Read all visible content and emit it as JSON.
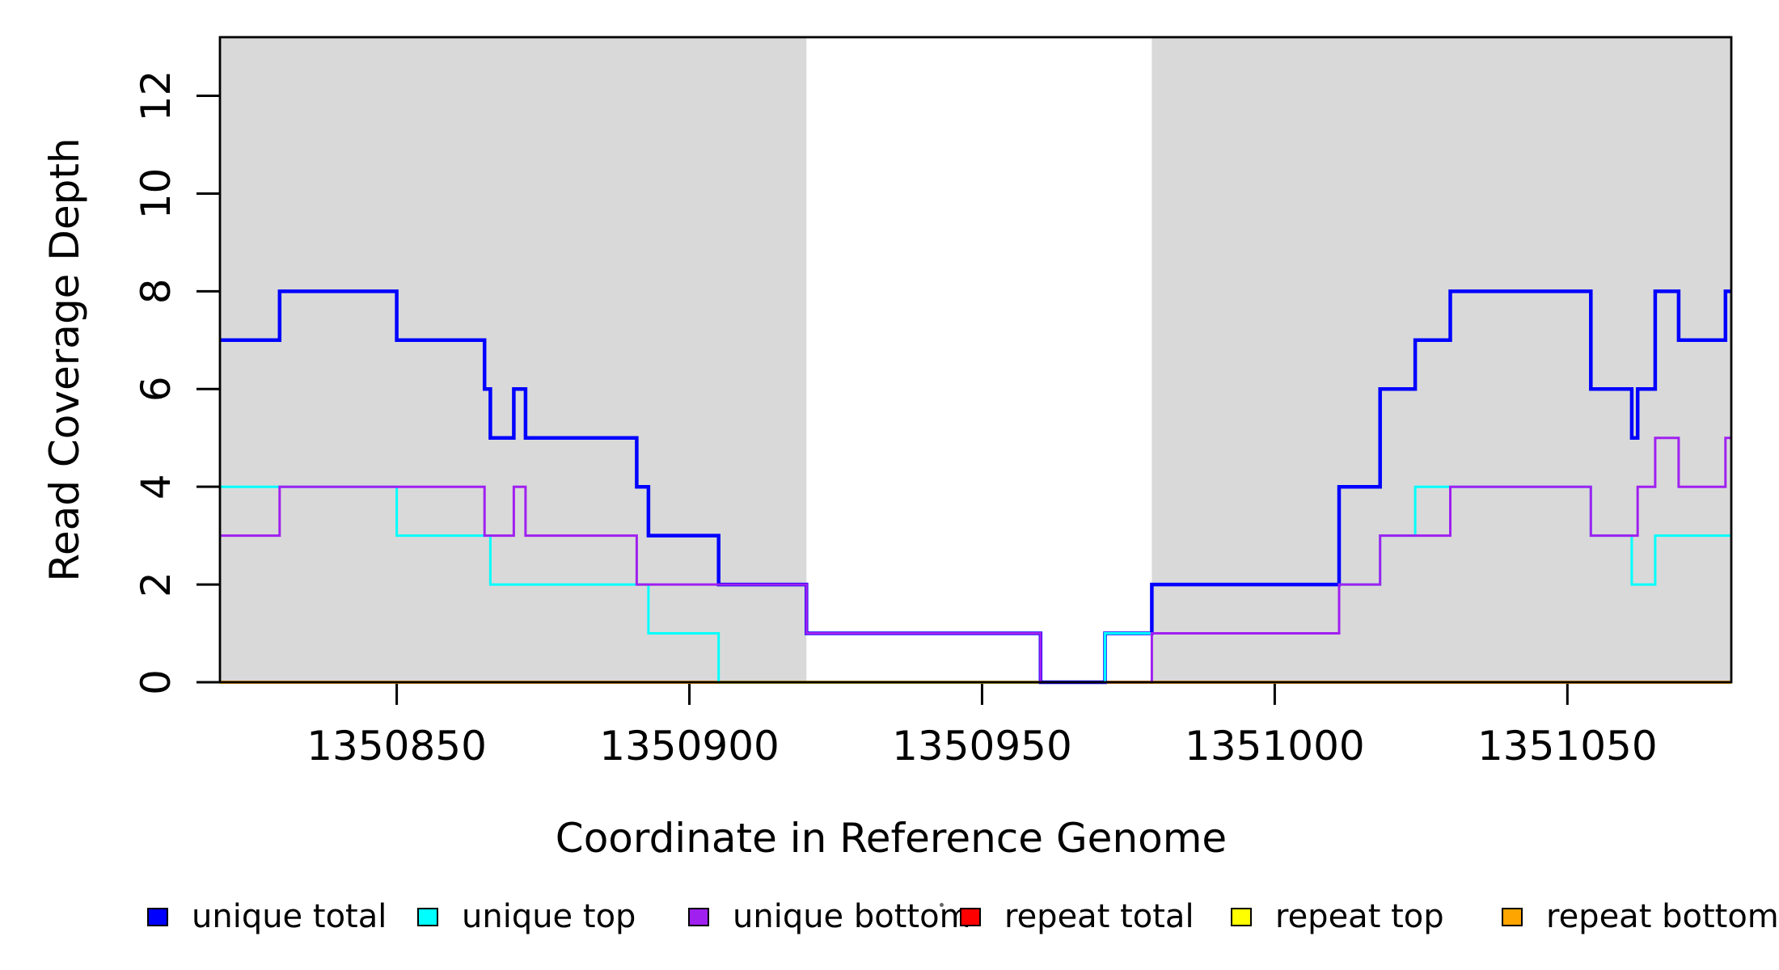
{
  "figure": {
    "x_axis_title": "Coordinate in Reference Genome",
    "y_axis_title": "Read Coverage Depth",
    "background_color": "#FFFFFF",
    "shading_color": "#D9D9D9",
    "axis_color": "#000000"
  },
  "chart_data": {
    "type": "line",
    "subtype": "step",
    "title": "",
    "xlabel": "Coordinate in Reference Genome",
    "ylabel": "Read Coverage Depth",
    "xlim": [
      1350819.8,
      1351078.0
    ],
    "ylim": [
      0,
      13.2
    ],
    "x_ticks": [
      1350850,
      1350900,
      1350950,
      1351000,
      1351050
    ],
    "y_ticks": [
      0,
      2,
      4,
      6,
      8,
      10,
      12
    ],
    "grid": false,
    "legend_position": "bottom",
    "shaded_regions": [
      {
        "x0": 1350819.8,
        "x1": 1350920,
        "color": "#D9D9D9"
      },
      {
        "x0": 1350979,
        "x1": 1351078,
        "color": "#D9D9D9"
      }
    ],
    "series": [
      {
        "name": "repeat total",
        "color": "#FF0000",
        "width": 3,
        "steps": [
          [
            1350819.8,
            0
          ]
        ]
      },
      {
        "name": "repeat top",
        "color": "#FFFF00",
        "width": 3,
        "steps": [
          [
            1350819.8,
            0
          ]
        ]
      },
      {
        "name": "repeat bottom",
        "color": "#FFA500",
        "width": 4,
        "steps": [
          [
            1350819.8,
            0
          ]
        ]
      },
      {
        "name": "unique total",
        "color": "#0000FF",
        "width": 4.5,
        "steps": [
          [
            1350819.8,
            7
          ],
          [
            1350830,
            8
          ],
          [
            1350850,
            7
          ],
          [
            1350865,
            6
          ],
          [
            1350866,
            5
          ],
          [
            1350870,
            6
          ],
          [
            1350872,
            5
          ],
          [
            1350891,
            4
          ],
          [
            1350893,
            3
          ],
          [
            1350905,
            2
          ],
          [
            1350920,
            1
          ],
          [
            1350960,
            0
          ],
          [
            1350971,
            1
          ],
          [
            1350979,
            2
          ],
          [
            1351011,
            4
          ],
          [
            1351018,
            6
          ],
          [
            1351024,
            7
          ],
          [
            1351030,
            8
          ],
          [
            1351054,
            6
          ],
          [
            1351061,
            5
          ],
          [
            1351062,
            6
          ],
          [
            1351065,
            8
          ],
          [
            1351069,
            7
          ],
          [
            1351077,
            8
          ]
        ]
      },
      {
        "name": "unique top",
        "color": "#00FFFF",
        "width": 3,
        "steps": [
          [
            1350819.8,
            4
          ],
          [
            1350850,
            3
          ],
          [
            1350866,
            2
          ],
          [
            1350893,
            1
          ],
          [
            1350905,
            0
          ],
          [
            1350971,
            1
          ],
          [
            1351011,
            2
          ],
          [
            1351018,
            3
          ],
          [
            1351024,
            4
          ],
          [
            1351054,
            3
          ],
          [
            1351061,
            2
          ],
          [
            1351065,
            3
          ]
        ]
      },
      {
        "name": "unique bottom",
        "color": "#A020F0",
        "width": 3,
        "steps": [
          [
            1350819.8,
            3
          ],
          [
            1350830,
            4
          ],
          [
            1350865,
            3
          ],
          [
            1350870,
            4
          ],
          [
            1350872,
            3
          ],
          [
            1350891,
            2
          ],
          [
            1350920,
            1
          ],
          [
            1350960,
            0
          ],
          [
            1350979,
            1
          ],
          [
            1351011,
            2
          ],
          [
            1351018,
            3
          ],
          [
            1351030,
            4
          ],
          [
            1351054,
            3
          ],
          [
            1351062,
            4
          ],
          [
            1351065,
            5
          ],
          [
            1351069,
            4
          ],
          [
            1351077,
            5
          ]
        ]
      }
    ],
    "legend": {
      "items": [
        {
          "label": "unique total",
          "color": "#0000FF"
        },
        {
          "label": "unique top",
          "color": "#00FFFF"
        },
        {
          "label": "unique bottom",
          "color": "#A020F0"
        },
        {
          "label": "repeat total",
          "color": "#FF0000"
        },
        {
          "label": "repeat top",
          "color": "#FFFF00"
        },
        {
          "label": "repeat bottom",
          "color": "#FFA500"
        }
      ]
    }
  }
}
